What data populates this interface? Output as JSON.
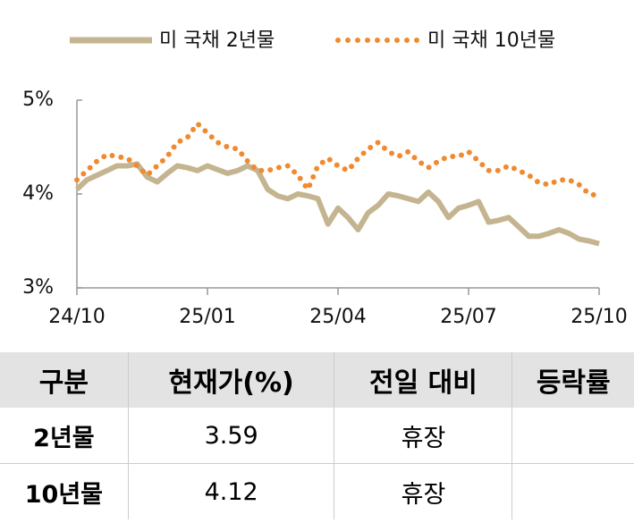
{
  "chart_data": {
    "type": "line",
    "categories": [
      "24/10",
      null,
      null,
      null,
      null,
      null,
      null,
      null,
      null,
      null,
      null,
      null,
      null,
      "25/01",
      null,
      null,
      null,
      null,
      null,
      null,
      null,
      null,
      null,
      null,
      null,
      null,
      "25/04",
      null,
      null,
      null,
      null,
      null,
      null,
      null,
      null,
      null,
      null,
      null,
      null,
      "25/07",
      null,
      null,
      null,
      null,
      null,
      null,
      null,
      null,
      null,
      null,
      null,
      null,
      "25/10"
    ],
    "series": [
      {
        "name": "미 국채 2년물",
        "color": "#c4b48f",
        "style": "solid",
        "values": [
          4.05,
          4.15,
          4.2,
          4.25,
          4.3,
          4.3,
          4.32,
          4.18,
          4.13,
          4.22,
          4.3,
          4.28,
          4.25,
          4.3,
          4.26,
          4.22,
          4.25,
          4.3,
          4.25,
          4.05,
          3.98,
          3.95,
          4.0,
          3.98,
          3.95,
          3.68,
          3.85,
          3.75,
          3.62,
          3.8,
          3.88,
          4.0,
          3.98,
          3.95,
          3.92,
          4.02,
          3.92,
          3.75,
          3.85,
          3.88,
          3.92,
          3.7,
          3.72,
          3.75,
          3.65,
          3.55,
          3.55,
          3.58,
          3.62,
          3.58,
          3.52,
          3.5,
          3.47
        ]
      },
      {
        "name": "미 국채 10년물",
        "color": "#f08a30",
        "style": "dotted",
        "values": [
          4.15,
          4.25,
          4.35,
          4.42,
          4.4,
          4.38,
          4.3,
          4.2,
          4.3,
          4.4,
          4.55,
          4.6,
          4.75,
          4.65,
          4.55,
          4.5,
          4.48,
          4.35,
          4.25,
          4.25,
          4.28,
          4.3,
          4.2,
          4.05,
          4.3,
          4.38,
          4.3,
          4.25,
          4.38,
          4.48,
          4.55,
          4.45,
          4.4,
          4.45,
          4.35,
          4.28,
          4.35,
          4.4,
          4.4,
          4.45,
          4.35,
          4.25,
          4.25,
          4.3,
          4.25,
          4.2,
          4.12,
          4.1,
          4.15,
          4.15,
          4.1,
          4.0,
          3.98
        ]
      }
    ],
    "ylim": [
      3,
      5
    ],
    "yticks": [
      {
        "value": 3,
        "label": "3%"
      },
      {
        "value": 4,
        "label": "4%"
      },
      {
        "value": 5,
        "label": "5%"
      }
    ],
    "legend": "top"
  },
  "table": {
    "columns": [
      "구분",
      "현재가(%)",
      "전일 대비",
      "등락률"
    ],
    "rows": [
      [
        "2년물",
        3.59,
        "휴장"
      ],
      [
        "10년물",
        4.12,
        "휴장"
      ]
    ]
  }
}
